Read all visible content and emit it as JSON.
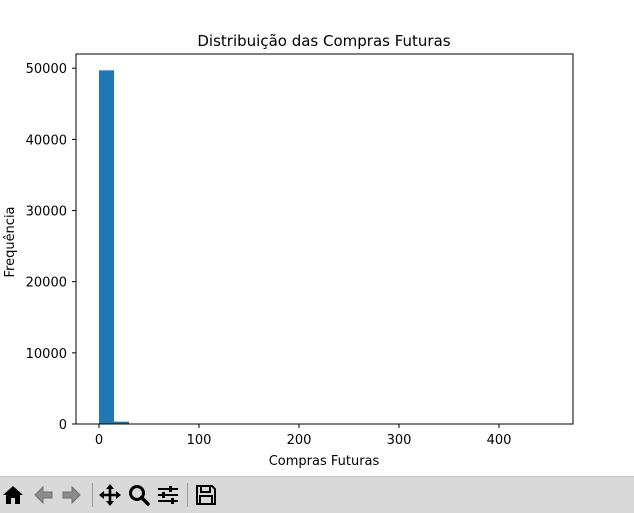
{
  "chart_data": {
    "type": "bar",
    "title": "Distribuição das Compras Futuras",
    "xlabel": "Compras Futuras",
    "ylabel": "Frequência",
    "xlim": [
      -23,
      474
    ],
    "ylim": [
      0,
      52000
    ],
    "x_ticks": [
      0,
      100,
      200,
      300,
      400
    ],
    "y_ticks": [
      0,
      10000,
      20000,
      30000,
      40000,
      50000
    ],
    "bin_width": 15,
    "bins": [
      {
        "start": 0,
        "end": 15,
        "value": 49700
      },
      {
        "start": 15,
        "end": 30,
        "value": 330
      }
    ],
    "bar_color": "#1f77b4",
    "grid": false
  },
  "toolbar": {
    "buttons": [
      {
        "icon": "home-icon",
        "name": "home-button",
        "active": true
      },
      {
        "icon": "back-arrow-icon",
        "name": "back-button",
        "active": false
      },
      {
        "icon": "forward-arrow-icon",
        "name": "forward-button",
        "active": false
      },
      {
        "icon": "pan-icon",
        "name": "pan-button",
        "active": true
      },
      {
        "icon": "zoom-icon",
        "name": "zoom-button",
        "active": true
      },
      {
        "icon": "configure-subplots-icon",
        "name": "configure-subplots-button",
        "active": true
      },
      {
        "icon": "save-icon",
        "name": "save-button",
        "active": true
      }
    ]
  }
}
